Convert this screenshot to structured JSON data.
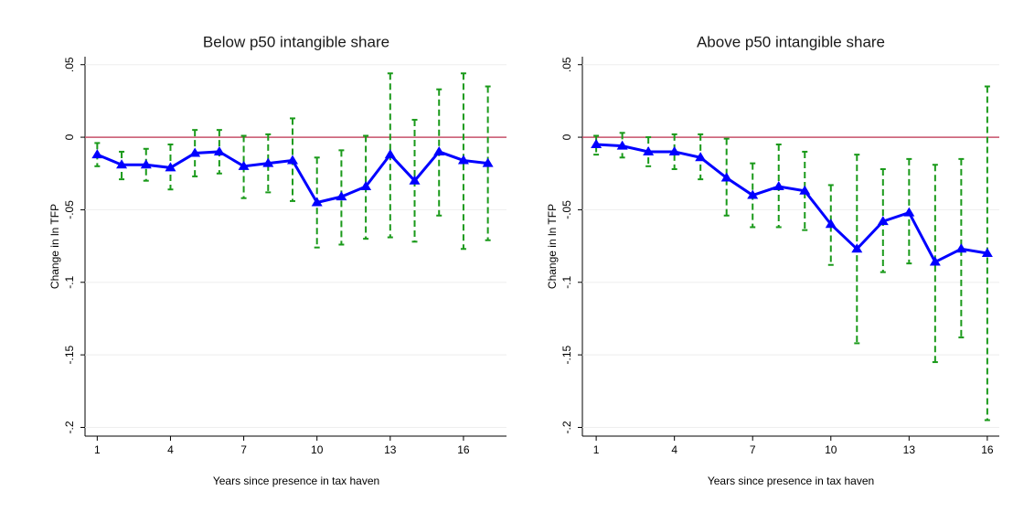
{
  "chart_data": [
    {
      "type": "line",
      "title": "Below p50 intangible share",
      "xlabel": "Years since presence in tax haven",
      "ylabel": "Change in ln TFP",
      "x": [
        1,
        2,
        3,
        4,
        5,
        6,
        7,
        8,
        9,
        10,
        11,
        12,
        13,
        14,
        15,
        16,
        17
      ],
      "series": [
        {
          "color": "#0000ff",
          "values": [
            -0.012,
            -0.019,
            -0.019,
            -0.021,
            -0.011,
            -0.01,
            -0.02,
            -0.018,
            -0.016,
            -0.045,
            -0.041,
            -0.034,
            -0.012,
            -0.03,
            -0.01,
            -0.016,
            -0.018
          ],
          "upper": [
            -0.004,
            -0.01,
            -0.008,
            -0.005,
            0.005,
            0.005,
            0.001,
            0.002,
            0.013,
            -0.014,
            -0.009,
            0.001,
            0.044,
            0.012,
            0.033,
            0.044,
            0.035
          ],
          "lower": [
            -0.02,
            -0.029,
            -0.03,
            -0.036,
            -0.027,
            -0.025,
            -0.042,
            -0.038,
            -0.044,
            -0.076,
            -0.074,
            -0.07,
            -0.069,
            -0.072,
            -0.054,
            -0.077,
            -0.071
          ],
          "error_color": "#1a9a1a"
        }
      ],
      "hline": 0,
      "hline_color": "#c8506a",
      "xlim": [
        0.5,
        17.8
      ],
      "xticks": [
        1,
        4,
        7,
        10,
        13,
        16
      ],
      "ylim": [
        -0.206,
        0.0555
      ],
      "yticks": [
        {
          "value": 0.05,
          "label": ".05"
        },
        0,
        {
          "value": -0.05,
          "label": "-.05"
        },
        {
          "value": -0.1,
          "label": "-.1"
        },
        {
          "value": -0.15,
          "label": "-.15"
        },
        {
          "value": -0.2,
          "label": "-.2"
        }
      ],
      "grid": true
    },
    {
      "type": "line",
      "title": "Above p50 intangible share",
      "xlabel": "Years since presence in tax haven",
      "ylabel": "Change in ln TFP",
      "x": [
        1,
        2,
        3,
        4,
        5,
        6,
        7,
        8,
        9,
        10,
        11,
        12,
        13,
        14,
        15,
        16
      ],
      "series": [
        {
          "color": "#0000ff",
          "values": [
            -0.005,
            -0.006,
            -0.01,
            -0.01,
            -0.014,
            -0.028,
            -0.04,
            -0.034,
            -0.037,
            -0.06,
            -0.077,
            -0.058,
            -0.052,
            -0.086,
            -0.077,
            -0.08
          ],
          "upper": [
            0.001,
            0.003,
            0,
            0.002,
            0.002,
            -0.001,
            -0.018,
            -0.005,
            -0.01,
            -0.033,
            -0.012,
            -0.022,
            -0.015,
            -0.019,
            -0.015,
            0.035
          ],
          "lower": [
            -0.012,
            -0.014,
            -0.02,
            -0.022,
            -0.029,
            -0.054,
            -0.062,
            -0.062,
            -0.064,
            -0.088,
            -0.142,
            -0.093,
            -0.087,
            -0.155,
            -0.138,
            -0.195
          ],
          "error_color": "#1a9a1a"
        }
      ],
      "hline": 0,
      "hline_color": "#c8506a",
      "xlim": [
        0.47,
        16.46
      ],
      "xticks": [
        1,
        4,
        7,
        10,
        13,
        16
      ],
      "ylim": [
        -0.206,
        0.0555
      ],
      "yticks": [
        {
          "value": 0.05,
          "label": ".05"
        },
        0,
        {
          "value": -0.05,
          "label": "-.05"
        },
        {
          "value": -0.1,
          "label": "-.1"
        },
        {
          "value": -0.15,
          "label": "-.15"
        },
        {
          "value": -0.2,
          "label": "-.2"
        }
      ],
      "grid": true
    }
  ]
}
